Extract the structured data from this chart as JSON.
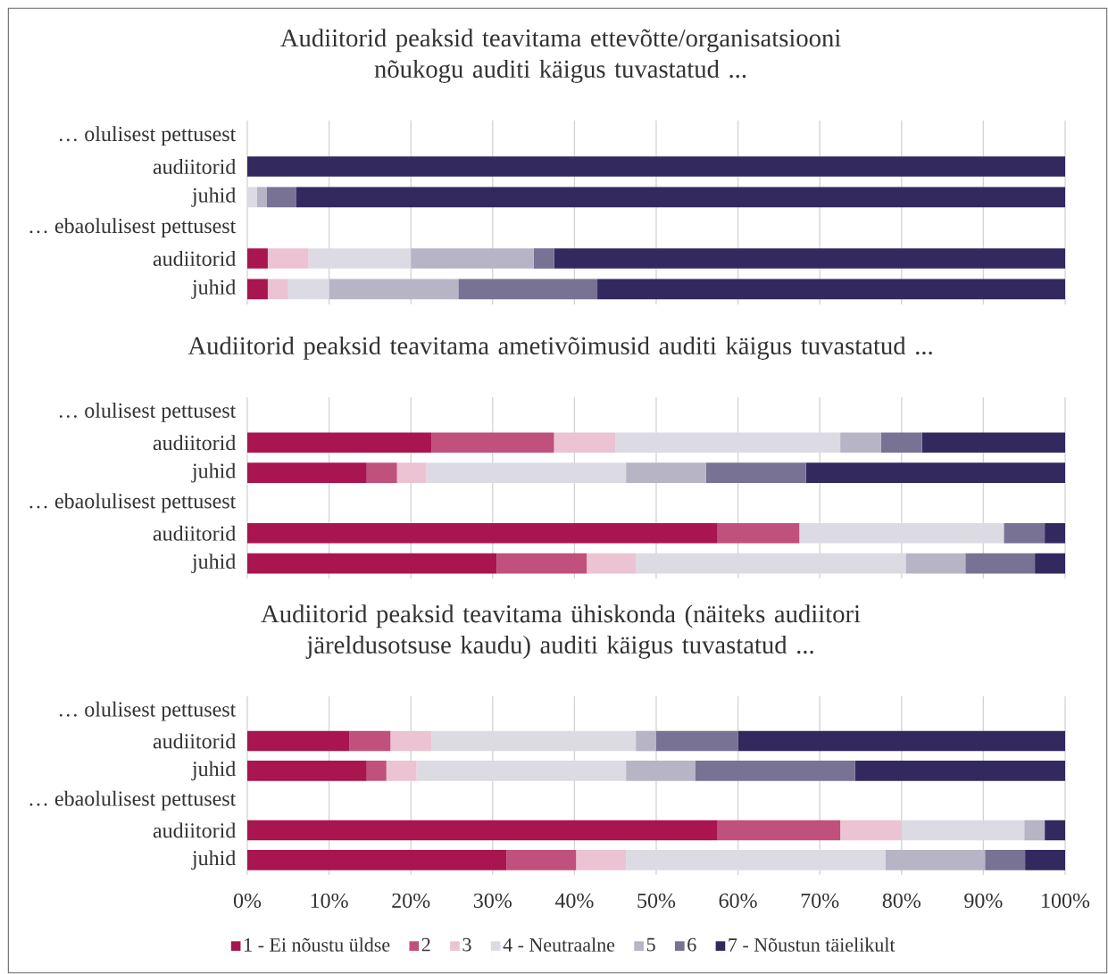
{
  "chart_data": [
    {
      "type": "bar",
      "orientation": "horizontal",
      "stacked": true,
      "grid": "x",
      "tick_labels": "y",
      "title": "Audiitorid peaksid teavitama ettevõtte/organisatsiooni nõukogu auditi käigus tuvastatud ...",
      "categories": [
        "… olulisest pettusest",
        "audiitorid",
        "juhid",
        "… ebaolulisest pettusest",
        "audiitorid",
        "juhid"
      ],
      "xlim": [
        0,
        100
      ],
      "xticks": [
        {
          "value": 0,
          "label": null
        },
        {
          "value": 10,
          "label": null
        },
        {
          "value": 20,
          "label": null
        },
        {
          "value": 30,
          "label": null
        },
        {
          "value": 40,
          "label": null
        },
        {
          "value": 50,
          "label": null
        },
        {
          "value": 60,
          "label": null
        },
        {
          "value": 70,
          "label": null
        },
        {
          "value": 80,
          "label": null
        },
        {
          "value": 90,
          "label": null
        },
        {
          "value": 100,
          "label": null
        }
      ],
      "series": [
        {
          "color": "#a8154f",
          "values": [
            null,
            0,
            0,
            null,
            2.5,
            2.5
          ]
        },
        {
          "color": "#c0507c",
          "values": [
            null,
            0,
            0,
            null,
            0,
            0
          ]
        },
        {
          "color": "#ebc3d3",
          "values": [
            null,
            0,
            0,
            null,
            5,
            2.5
          ]
        },
        {
          "color": "#dcdbe4",
          "values": [
            null,
            0,
            1.2,
            null,
            12.5,
            5
          ]
        },
        {
          "color": "#b7b4c6",
          "values": [
            null,
            0,
            1.2,
            null,
            15,
            15.8
          ]
        },
        {
          "color": "#787294",
          "values": [
            null,
            0,
            3.6,
            null,
            2.5,
            17
          ]
        },
        {
          "color": "#33295e",
          "values": [
            null,
            100,
            94,
            null,
            62.5,
            57.2
          ]
        }
      ]
    },
    {
      "type": "bar",
      "orientation": "horizontal",
      "stacked": true,
      "grid": "x",
      "tick_labels": "y",
      "title": "Audiitorid peaksid teavitama ametivõimusid auditi käigus tuvastatud ...",
      "categories": [
        "… olulisest pettusest",
        "audiitorid",
        "juhid",
        "… ebaolulisest pettusest",
        "audiitorid",
        "juhid"
      ],
      "xlim": [
        0,
        100
      ],
      "xticks": [
        {
          "value": 0,
          "label": null
        },
        {
          "value": 10,
          "label": null
        },
        {
          "value": 20,
          "label": null
        },
        {
          "value": 30,
          "label": null
        },
        {
          "value": 40,
          "label": null
        },
        {
          "value": 50,
          "label": null
        },
        {
          "value": 60,
          "label": null
        },
        {
          "value": 70,
          "label": null
        },
        {
          "value": 80,
          "label": null
        },
        {
          "value": 90,
          "label": null
        },
        {
          "value": 100,
          "label": null
        }
      ],
      "series": [
        {
          "color": "#a8154f",
          "values": [
            null,
            22.5,
            14.6,
            null,
            57.5,
            30.5
          ]
        },
        {
          "color": "#c0507c",
          "values": [
            null,
            15,
            3.7,
            null,
            10,
            11
          ]
        },
        {
          "color": "#ebc3d3",
          "values": [
            null,
            7.5,
            3.6,
            null,
            0,
            6
          ]
        },
        {
          "color": "#dcdbe4",
          "values": [
            null,
            27.5,
            24.4,
            null,
            25,
            33
          ]
        },
        {
          "color": "#b7b4c6",
          "values": [
            null,
            5,
            9.8,
            null,
            0,
            7.3
          ]
        },
        {
          "color": "#787294",
          "values": [
            null,
            5,
            12.2,
            null,
            5,
            8.5
          ]
        },
        {
          "color": "#33295e",
          "values": [
            null,
            17.5,
            31.7,
            null,
            2.5,
            3.7
          ]
        }
      ]
    },
    {
      "type": "bar",
      "orientation": "horizontal",
      "stacked": true,
      "grid": "x",
      "legend": "bottom",
      "title": "Audiitorid peaksid teavitama ühiskonda (näiteks audiitori järeldusotsuse kaudu) auditi käigus tuvastatud ...",
      "categories": [
        "… olulisest pettusest",
        "audiitorid",
        "juhid",
        "… ebaolulisest pettusest",
        "audiitorid",
        "juhid"
      ],
      "xlim": [
        0,
        100
      ],
      "xticks": [
        {
          "value": 0,
          "label": "0%"
        },
        {
          "value": 10,
          "label": "10%"
        },
        {
          "value": 20,
          "label": "20%"
        },
        {
          "value": 30,
          "label": "30%"
        },
        {
          "value": 40,
          "label": "40%"
        },
        {
          "value": 50,
          "label": "50%"
        },
        {
          "value": 60,
          "label": "60%"
        },
        {
          "value": 70,
          "label": "70%"
        },
        {
          "value": 80,
          "label": "80%"
        },
        {
          "value": 90,
          "label": "90%"
        },
        {
          "value": 100,
          "label": "100%"
        }
      ],
      "series": [
        {
          "name": "1 - Ei nõustu üldse",
          "color": "#a8154f",
          "values": [
            null,
            12.5,
            14.6,
            null,
            57.5,
            31.7
          ]
        },
        {
          "name": "2",
          "color": "#c0507c",
          "values": [
            null,
            5,
            2.4,
            null,
            15,
            8.5
          ]
        },
        {
          "name": "3",
          "color": "#ebc3d3",
          "values": [
            null,
            5,
            3.7,
            null,
            7.5,
            6.1
          ]
        },
        {
          "name": "4 - Neutraalne",
          "color": "#dcdbe4",
          "values": [
            null,
            25,
            25.6,
            null,
            15,
            31.7
          ]
        },
        {
          "name": "5",
          "color": "#b7b4c6",
          "values": [
            null,
            2.5,
            8.5,
            null,
            2.5,
            12.2
          ]
        },
        {
          "name": "6",
          "color": "#787294",
          "values": [
            null,
            10,
            19.5,
            null,
            0,
            4.9
          ]
        },
        {
          "name": "7 - Nõustun täielikult",
          "color": "#33295e",
          "values": [
            null,
            40,
            25.7,
            null,
            2.5,
            4.9
          ]
        }
      ]
    }
  ]
}
